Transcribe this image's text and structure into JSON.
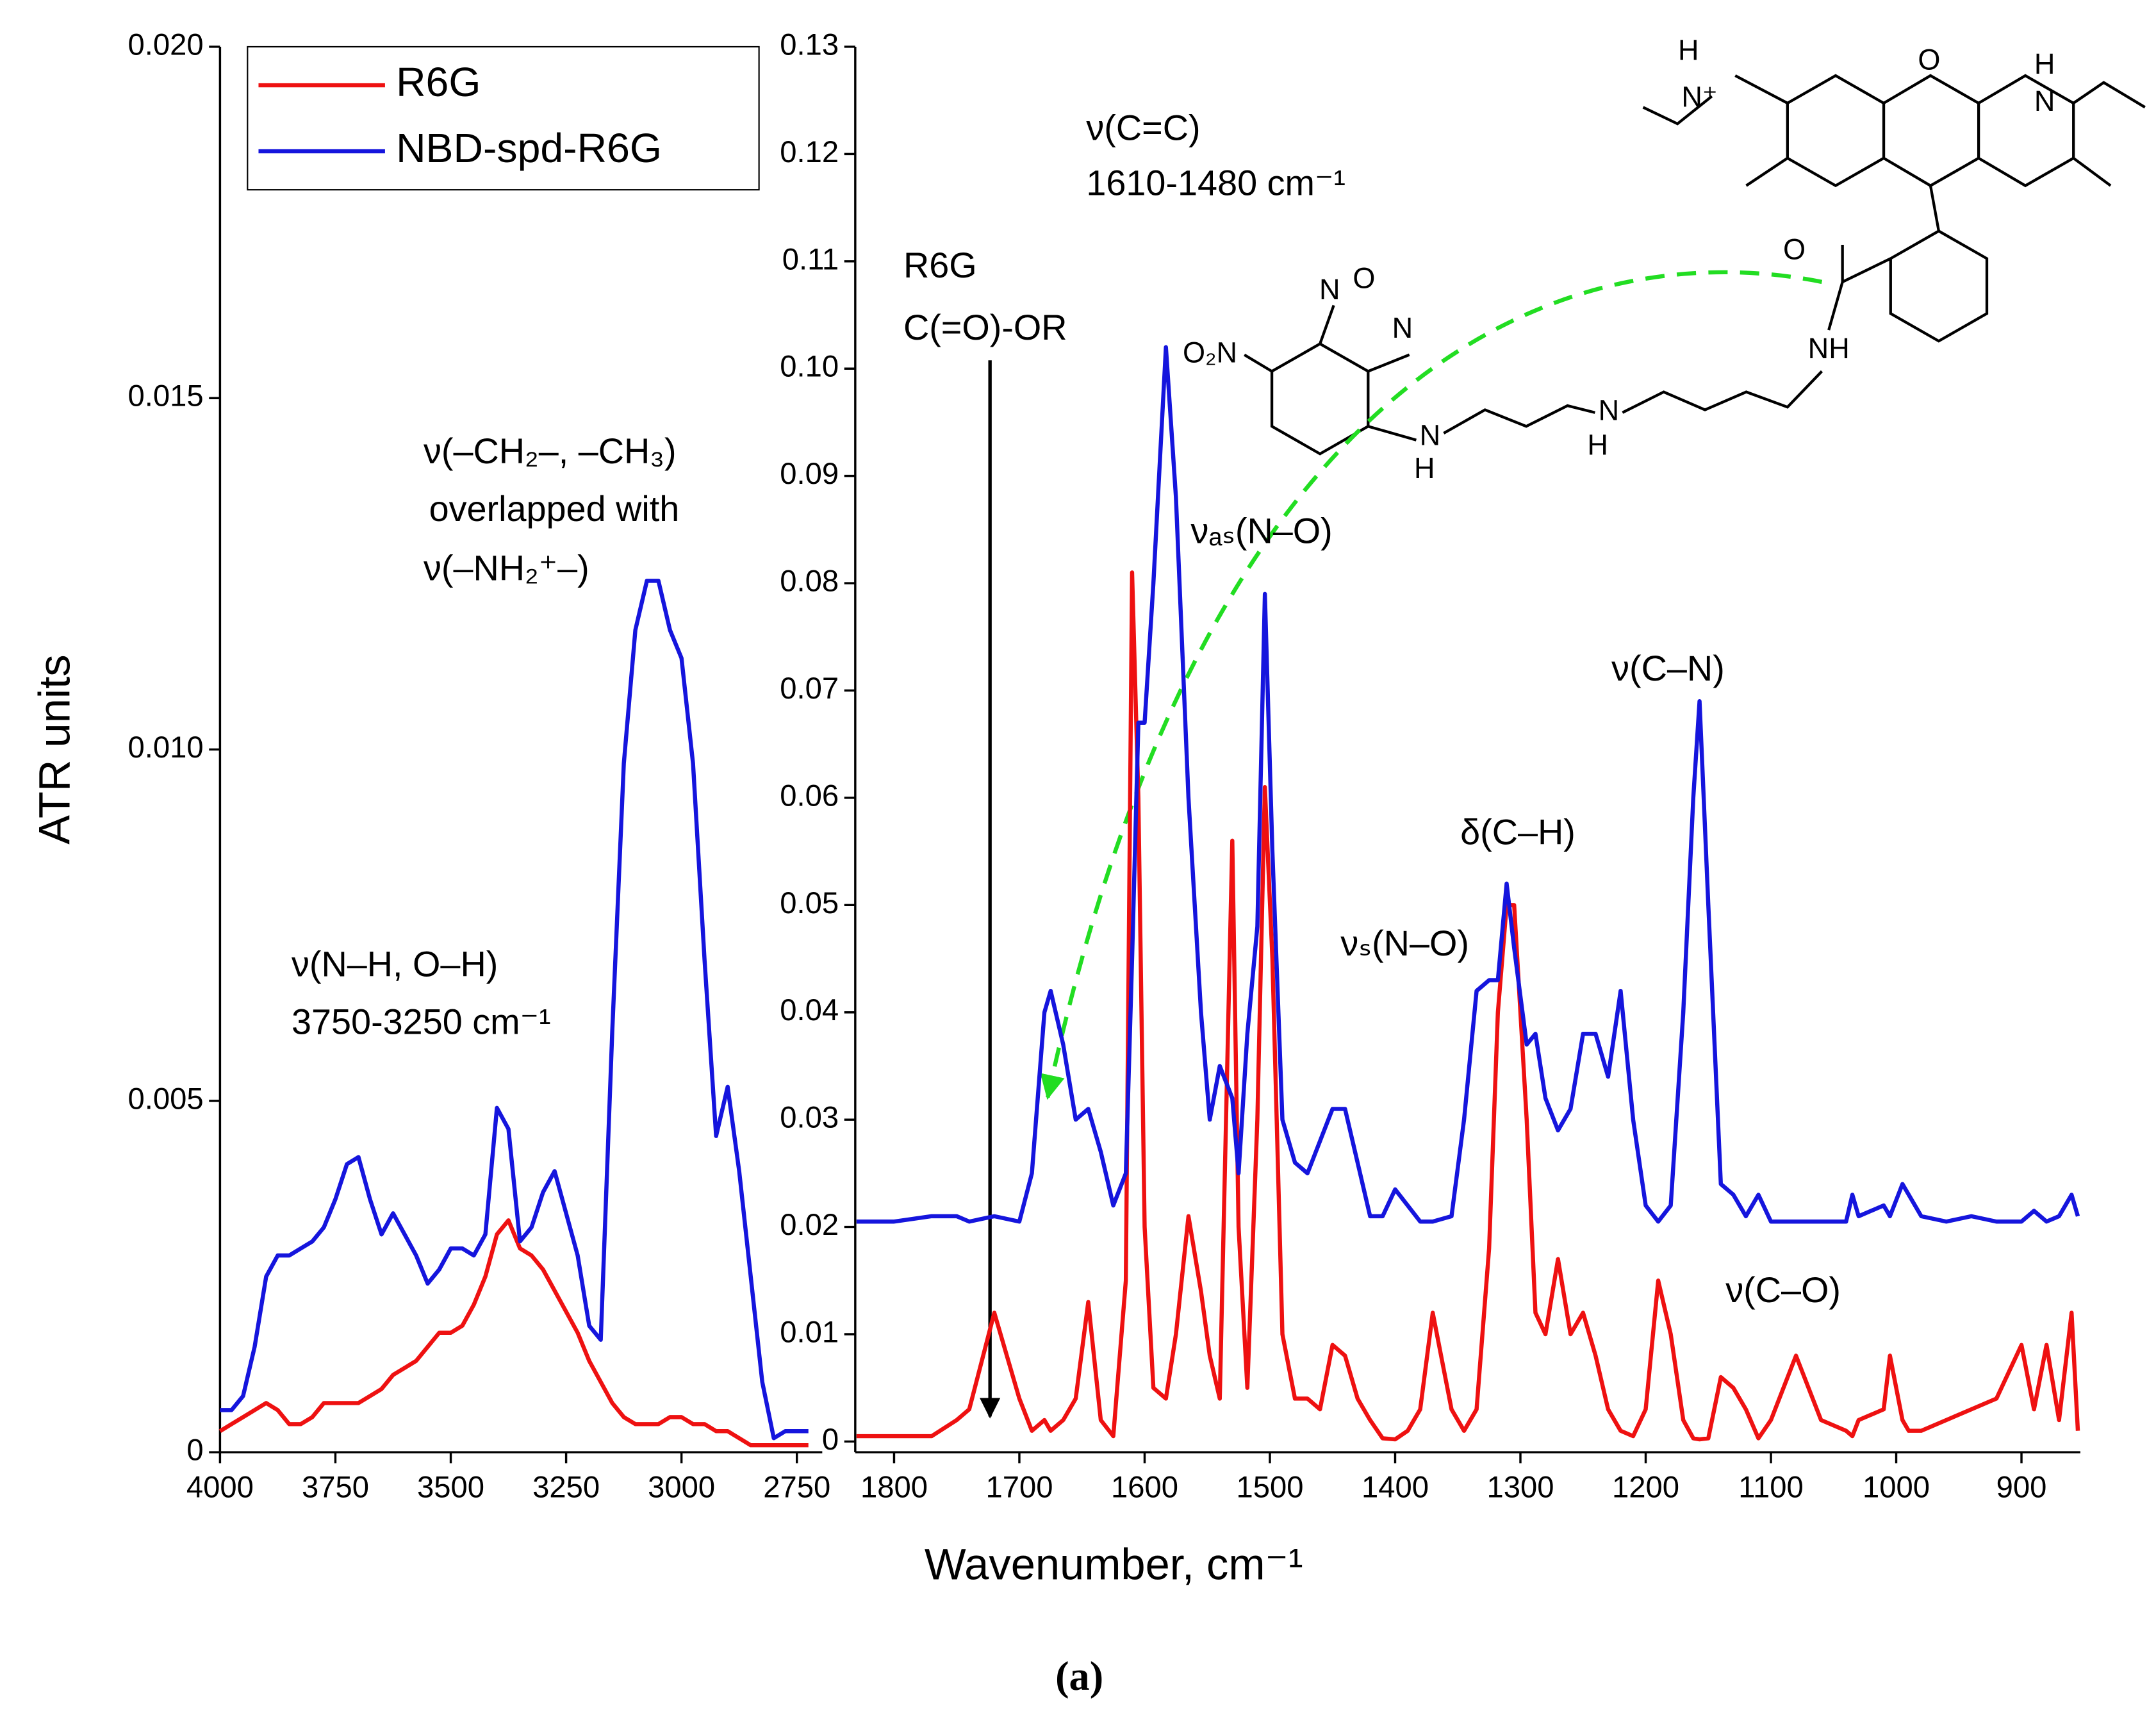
{
  "chart_data": [
    {
      "type": "line",
      "ylabel": "ATR units",
      "legend": "upper left",
      "xlim": [
        4000,
        2695
      ],
      "xticks": [
        4000,
        3750,
        3500,
        3250,
        3000,
        2750
      ],
      "ylim": [
        0,
        0.02
      ],
      "yticks": [
        0,
        0.005,
        {
          "value": 0.01,
          "label": "0.010"
        },
        0.015,
        {
          "value": 0.02,
          "label": "0.020"
        }
      ],
      "x": [
        4000,
        3975,
        3950,
        3925,
        3900,
        3875,
        3850,
        3825,
        3800,
        3775,
        3750,
        3725,
        3700,
        3675,
        3650,
        3625,
        3600,
        3575,
        3550,
        3525,
        3500,
        3475,
        3450,
        3425,
        3400,
        3375,
        3350,
        3325,
        3300,
        3275,
        3250,
        3225,
        3200,
        3175,
        3150,
        3125,
        3100,
        3075,
        3050,
        3025,
        3000,
        2975,
        2950,
        2925,
        2900,
        2875,
        2850,
        2825,
        2800,
        2775,
        2750,
        2725
      ],
      "series": [
        {
          "name": "R6G",
          "color": "#ee1111",
          "values": [
            0.0003,
            0.0004,
            0.0005,
            0.0006,
            0.0007,
            0.0006,
            0.0004,
            0.0004,
            0.0005,
            0.0007,
            0.0007,
            0.0007,
            0.0007,
            0.0008,
            0.0009,
            0.0011,
            0.0012,
            0.0013,
            0.0015,
            0.0017,
            0.0017,
            0.0018,
            0.0021,
            0.0025,
            0.0031,
            0.0033,
            0.0029,
            0.0028,
            0.0026,
            0.0023,
            0.002,
            0.0017,
            0.0013,
            0.001,
            0.0007,
            0.0005,
            0.0004,
            0.0004,
            0.0004,
            0.0005,
            0.0005,
            0.0004,
            0.0004,
            0.0003,
            0.0003,
            0.0002,
            0.0001,
            0.0001,
            0.0001,
            0.0001,
            0.0001,
            0.0001
          ]
        },
        {
          "name": "NBD-spd-R6G",
          "color": "#1515dd",
          "values": [
            0.0006,
            0.0006,
            0.0008,
            0.0015,
            0.0025,
            0.0028,
            0.0028,
            0.0029,
            0.003,
            0.0032,
            0.0036,
            0.0041,
            0.0042,
            0.0036,
            0.0031,
            0.0034,
            0.0031,
            0.0028,
            0.0024,
            0.0026,
            0.0029,
            0.0029,
            0.0028,
            0.0031,
            0.0049,
            0.0046,
            0.003,
            0.0032,
            0.0037,
            0.004,
            0.0034,
            0.0028,
            0.0018,
            0.0016,
            0.006,
            0.0098,
            0.0117,
            0.0124,
            0.0124,
            0.0117,
            0.0113,
            0.0098,
            0.007,
            0.0045,
            0.0052,
            0.004,
            0.0025,
            0.001,
            0.0002,
            0.0003,
            0.0003,
            0.0003
          ]
        }
      ],
      "annotations": [
        "ν(N–H, O–H)",
        "3750-3250 cm⁻¹",
        "ν(–CH₂–, –CH₃)",
        "overlapped with",
        "ν(–NH₂⁺–)"
      ]
    },
    {
      "type": "line",
      "xlabel": "Wavenumber, cm⁻¹",
      "xlim": [
        1831,
        853
      ],
      "xticks": [
        1800,
        1700,
        1600,
        1500,
        1400,
        1300,
        1200,
        1100,
        1000,
        900
      ],
      "ylim": [
        -0.001,
        0.13
      ],
      "yticks": [
        0,
        0.01,
        0.02,
        0.03,
        0.04,
        0.05,
        0.06,
        0.07,
        0.08,
        0.09,
        {
          "value": 0.1,
          "label": "0.10"
        },
        0.11,
        0.12,
        0.13
      ],
      "x": [
        1830,
        1800,
        1770,
        1750,
        1740,
        1720,
        1700,
        1690,
        1680,
        1675,
        1665,
        1655,
        1645,
        1635,
        1625,
        1615,
        1610,
        1605,
        1600,
        1593,
        1583,
        1575,
        1565,
        1555,
        1548,
        1540,
        1530,
        1525,
        1518,
        1510,
        1504,
        1498,
        1490,
        1480,
        1470,
        1460,
        1450,
        1440,
        1430,
        1420,
        1410,
        1400,
        1390,
        1380,
        1370,
        1355,
        1345,
        1335,
        1325,
        1318,
        1311,
        1305,
        1295,
        1288,
        1280,
        1270,
        1260,
        1250,
        1240,
        1230,
        1220,
        1210,
        1200,
        1190,
        1180,
        1170,
        1162,
        1157,
        1150,
        1140,
        1130,
        1120,
        1110,
        1100,
        1080,
        1060,
        1040,
        1035,
        1030,
        1010,
        1005,
        995,
        990,
        980,
        960,
        940,
        920,
        900,
        890,
        880,
        870,
        860,
        855
      ],
      "series": [
        {
          "color": "#ee1111",
          "values": [
            0.0005,
            0.0005,
            0.0005,
            0.002,
            0.003,
            0.012,
            0.004,
            0.001,
            0.002,
            0.001,
            0.002,
            0.004,
            0.013,
            0.002,
            0.0005,
            0.015,
            0.081,
            0.06,
            0.02,
            0.005,
            0.004,
            0.01,
            0.021,
            0.014,
            0.008,
            0.004,
            0.056,
            0.02,
            0.005,
            0.03,
            0.061,
            0.045,
            0.01,
            0.004,
            0.004,
            0.003,
            0.009,
            0.008,
            0.004,
            0.002,
            0.0003,
            0.0002,
            0.001,
            0.003,
            0.012,
            0.003,
            0.001,
            0.003,
            0.018,
            0.04,
            0.05,
            0.05,
            0.03,
            0.012,
            0.01,
            0.017,
            0.01,
            0.012,
            0.008,
            0.003,
            0.001,
            0.0005,
            0.003,
            0.015,
            0.01,
            0.002,
            0.0003,
            0.0002,
            0.0003,
            0.006,
            0.005,
            0.003,
            0.0003,
            0.002,
            0.008,
            0.002,
            0.001,
            0.0005,
            0.002,
            0.003,
            0.008,
            0.002,
            0.001,
            0.001,
            0.002,
            0.003,
            0.004,
            0.009,
            0.003,
            0.009,
            0.002,
            0.012,
            0.001
          ]
        },
        {
          "color": "#1515dd",
          "values": [
            0.0205,
            0.0205,
            0.021,
            0.021,
            0.0205,
            0.021,
            0.0205,
            0.025,
            0.04,
            0.042,
            0.037,
            0.03,
            0.031,
            0.027,
            0.022,
            0.025,
            0.045,
            0.067,
            0.067,
            0.08,
            0.102,
            0.088,
            0.06,
            0.04,
            0.03,
            0.035,
            0.032,
            0.025,
            0.038,
            0.048,
            0.079,
            0.055,
            0.03,
            0.026,
            0.025,
            0.028,
            0.031,
            0.031,
            0.026,
            0.021,
            0.021,
            0.0235,
            0.022,
            0.0205,
            0.0205,
            0.021,
            0.03,
            0.042,
            0.043,
            0.043,
            0.052,
            0.046,
            0.037,
            0.038,
            0.032,
            0.029,
            0.031,
            0.038,
            0.038,
            0.034,
            0.042,
            0.03,
            0.022,
            0.0205,
            0.022,
            0.04,
            0.06,
            0.069,
            0.05,
            0.024,
            0.023,
            0.021,
            0.023,
            0.0205,
            0.0205,
            0.0205,
            0.0205,
            0.023,
            0.021,
            0.022,
            0.021,
            0.024,
            0.023,
            0.021,
            0.0205,
            0.021,
            0.0205,
            0.0205,
            0.0215,
            0.0205,
            0.021,
            0.023,
            0.021
          ]
        }
      ],
      "annotations": [
        "ν(C=C)",
        "1610-1480 cm⁻¹",
        "R6G",
        "C(=O)-OR",
        "νₐₛ(N–O)",
        "νₛ(N–O)",
        "δ(C–H)",
        "ν(C–N)",
        "ν(C–O)"
      ]
    }
  ],
  "structure": {
    "labels": [
      "H",
      "N⁺",
      "O",
      "H",
      "N",
      "O",
      "N",
      "O",
      "N",
      "O₂N",
      "NH",
      "N",
      "H",
      "N",
      "H"
    ]
  },
  "caption": "(a)"
}
